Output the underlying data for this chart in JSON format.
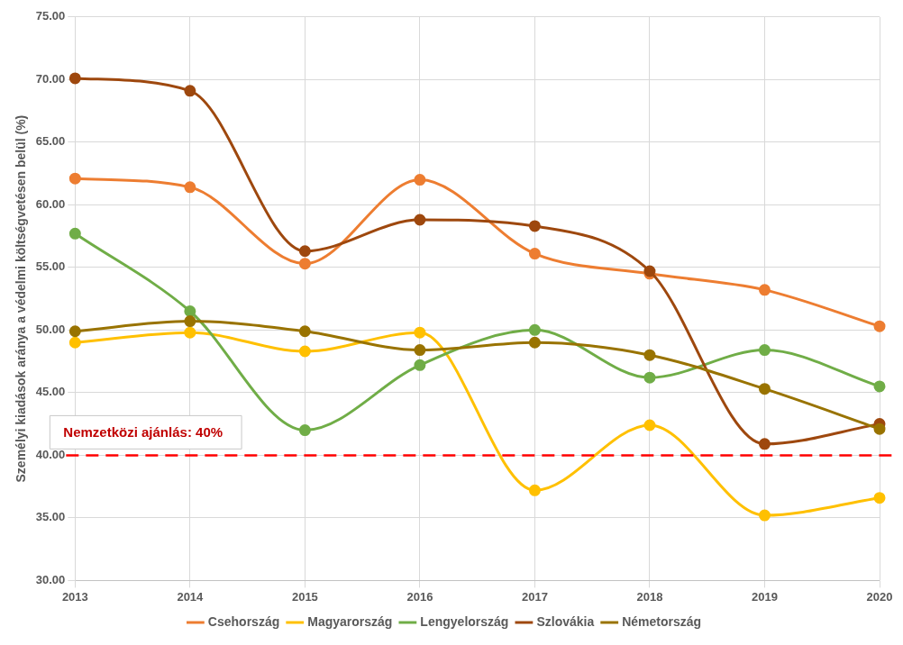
{
  "chart_data": {
    "type": "line",
    "ylabel": "Személyi kiadások aránya a védelmi költségvetésen belül (%)",
    "categories": [
      "2013",
      "2014",
      "2015",
      "2016",
      "2017",
      "2018",
      "2019",
      "2020"
    ],
    "series": [
      {
        "name": "Csehország",
        "color": "#ed7d31",
        "values": [
          62.1,
          61.4,
          55.3,
          62.0,
          56.1,
          54.5,
          53.2,
          50.3
        ]
      },
      {
        "name": "Magyarország",
        "color": "#ffc000",
        "values": [
          49.0,
          49.8,
          48.3,
          49.8,
          37.2,
          42.4,
          35.2,
          36.6
        ]
      },
      {
        "name": "Lengyelország",
        "color": "#70ad47",
        "values": [
          57.7,
          51.5,
          42.0,
          47.2,
          50.0,
          46.2,
          48.4,
          45.5
        ]
      },
      {
        "name": "Szlovákia",
        "color": "#9e480e",
        "values": [
          70.1,
          69.1,
          56.3,
          58.8,
          58.3,
          54.7,
          40.9,
          42.5
        ]
      },
      {
        "name": "Németország",
        "color": "#997300",
        "values": [
          49.9,
          50.7,
          49.9,
          48.4,
          49.0,
          48.0,
          45.3,
          42.1
        ]
      }
    ],
    "ylim": [
      30,
      75
    ],
    "yticks": [
      {
        "value": 30,
        "label": "30.00"
      },
      {
        "value": 35,
        "label": "35.00"
      },
      {
        "value": 40,
        "label": "40.00"
      },
      {
        "value": 45,
        "label": "45.00"
      },
      {
        "value": 50,
        "label": "50.00"
      },
      {
        "value": 55,
        "label": "55.00"
      },
      {
        "value": 60,
        "label": "60.00"
      },
      {
        "value": 65,
        "label": "65.00"
      },
      {
        "value": 70,
        "label": "70.00"
      },
      {
        "value": 75,
        "label": "75.00"
      }
    ],
    "ref_lines": [
      {
        "axis": "y",
        "value": 40,
        "label": "Nemzetközi ajánlás: 40%",
        "color": "#ff0000",
        "line_style": "dashed"
      }
    ],
    "grid": true,
    "legend": "bottom",
    "marker": "circle",
    "line_style": "solid"
  }
}
